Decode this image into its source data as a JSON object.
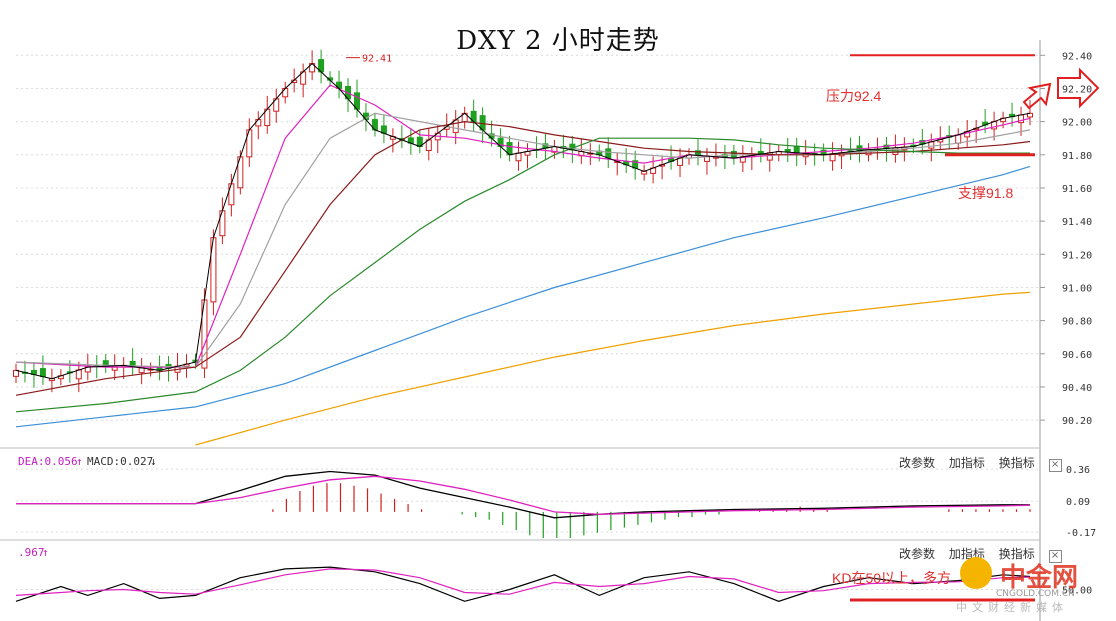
{
  "chart_data": [
    {
      "type": "candlestick",
      "title": "DXY 2 小时走势",
      "ylim": [
        90.05,
        92.45
      ],
      "y_ticks": [
        "92.40",
        "92.20",
        "92.00",
        "91.80",
        "91.60",
        "91.40",
        "91.20",
        "91.00",
        "90.80",
        "90.60",
        "90.40",
        "90.20"
      ],
      "peak_label": "92.41",
      "annotations": {
        "resistance": "压力92.4",
        "support": "支撑91.8"
      },
      "resistance_level": 92.4,
      "support_level": 91.8,
      "series": [
        {
          "name": "close",
          "color": "#000000",
          "points": [
            [
              0,
              90.5
            ],
            [
              4,
              90.45
            ],
            [
              8,
              90.52
            ],
            [
              12,
              90.53
            ],
            [
              16,
              90.5
            ],
            [
              20,
              90.55
            ],
            [
              22,
              91.3
            ],
            [
              26,
              91.95
            ],
            [
              30,
              92.2
            ],
            [
              33,
              92.35
            ],
            [
              36,
              92.2
            ],
            [
              40,
              91.95
            ],
            [
              45,
              91.85
            ],
            [
              50,
              92.05
            ],
            [
              55,
              91.8
            ],
            [
              60,
              91.85
            ],
            [
              65,
              91.8
            ],
            [
              70,
              91.7
            ],
            [
              75,
              91.8
            ],
            [
              80,
              91.78
            ],
            [
              85,
              91.82
            ],
            [
              90,
              91.8
            ],
            [
              95,
              91.83
            ],
            [
              100,
              91.85
            ],
            [
              105,
              91.92
            ],
            [
              110,
              92.02
            ],
            [
              113,
              92.05
            ]
          ]
        },
        {
          "name": "ma-pink",
          "color": "#e020c0",
          "points": [
            [
              0,
              90.55
            ],
            [
              10,
              90.52
            ],
            [
              20,
              90.52
            ],
            [
              25,
              91.2
            ],
            [
              30,
              91.9
            ],
            [
              35,
              92.22
            ],
            [
              40,
              92.1
            ],
            [
              45,
              91.92
            ],
            [
              50,
              91.9
            ],
            [
              55,
              91.85
            ],
            [
              60,
              91.82
            ],
            [
              65,
              91.78
            ],
            [
              70,
              91.75
            ],
            [
              75,
              91.8
            ],
            [
              80,
              91.78
            ],
            [
              85,
              91.8
            ],
            [
              90,
              91.82
            ],
            [
              95,
              91.84
            ],
            [
              100,
              91.87
            ],
            [
              105,
              91.92
            ],
            [
              110,
              91.98
            ],
            [
              113,
              92.02
            ]
          ]
        },
        {
          "name": "ma-gray",
          "color": "#a0a0a0",
          "points": [
            [
              0,
              90.55
            ],
            [
              10,
              90.53
            ],
            [
              20,
              90.52
            ],
            [
              25,
              90.9
            ],
            [
              30,
              91.5
            ],
            [
              35,
              91.9
            ],
            [
              40,
              92.05
            ],
            [
              45,
              92.0
            ],
            [
              50,
              91.95
            ],
            [
              55,
              91.9
            ],
            [
              60,
              91.85
            ],
            [
              65,
              91.82
            ],
            [
              70,
              91.8
            ],
            [
              75,
              91.78
            ],
            [
              80,
              91.8
            ],
            [
              85,
              91.8
            ],
            [
              90,
              91.8
            ],
            [
              95,
              91.82
            ],
            [
              100,
              91.84
            ],
            [
              105,
              91.87
            ],
            [
              110,
              91.92
            ],
            [
              113,
              91.95
            ]
          ]
        },
        {
          "name": "ma-brown",
          "color": "#8b1a1a",
          "points": [
            [
              0,
              90.35
            ],
            [
              10,
              90.45
            ],
            [
              20,
              90.52
            ],
            [
              25,
              90.7
            ],
            [
              30,
              91.1
            ],
            [
              35,
              91.5
            ],
            [
              40,
              91.8
            ],
            [
              45,
              91.95
            ],
            [
              50,
              92.0
            ],
            [
              55,
              91.97
            ],
            [
              60,
              91.92
            ],
            [
              65,
              91.88
            ],
            [
              70,
              91.84
            ],
            [
              75,
              91.82
            ],
            [
              80,
              91.81
            ],
            [
              85,
              91.8
            ],
            [
              90,
              91.8
            ],
            [
              95,
              91.81
            ],
            [
              100,
              91.82
            ],
            [
              105,
              91.84
            ],
            [
              110,
              91.86
            ],
            [
              113,
              91.88
            ]
          ]
        },
        {
          "name": "ma-green",
          "color": "#2a8a2a",
          "points": [
            [
              0,
              90.25
            ],
            [
              10,
              90.3
            ],
            [
              20,
              90.37
            ],
            [
              25,
              90.5
            ],
            [
              30,
              90.7
            ],
            [
              35,
              90.95
            ],
            [
              40,
              91.15
            ],
            [
              45,
              91.35
            ],
            [
              50,
              91.52
            ],
            [
              55,
              91.65
            ],
            [
              60,
              91.8
            ],
            [
              65,
              91.9
            ],
            [
              70,
              91.9
            ],
            [
              75,
              91.9
            ],
            [
              80,
              91.89
            ],
            [
              85,
              91.86
            ],
            [
              90,
              91.84
            ],
            [
              95,
              91.83
            ],
            [
              100,
              91.82
            ],
            [
              105,
              91.81
            ],
            [
              110,
              91.81
            ],
            [
              113,
              91.81
            ]
          ]
        },
        {
          "name": "ma-blue",
          "color": "#3b8fd8",
          "points": [
            [
              0,
              90.16
            ],
            [
              10,
              90.22
            ],
            [
              20,
              90.28
            ],
            [
              30,
              90.42
            ],
            [
              40,
              90.62
            ],
            [
              50,
              90.82
            ],
            [
              60,
              91.0
            ],
            [
              70,
              91.15
            ],
            [
              80,
              91.3
            ],
            [
              90,
              91.42
            ],
            [
              100,
              91.55
            ],
            [
              110,
              91.68
            ],
            [
              113,
              91.73
            ]
          ]
        },
        {
          "name": "ma-orange",
          "color": "#f0a000",
          "points": [
            [
              20,
              90.05
            ],
            [
              30,
              90.2
            ],
            [
              40,
              90.34
            ],
            [
              50,
              90.46
            ],
            [
              60,
              90.58
            ],
            [
              70,
              90.68
            ],
            [
              80,
              90.77
            ],
            [
              90,
              90.84
            ],
            [
              100,
              90.9
            ],
            [
              110,
              90.96
            ],
            [
              113,
              90.97
            ]
          ]
        }
      ]
    },
    {
      "type": "line",
      "indicator": "MACD",
      "label_dea": "DEA:0.056",
      "label_macd": "MACD:0.027",
      "y_ticks": [
        "0.36",
        "0.09",
        "-0.17"
      ],
      "ylim": [
        -0.22,
        0.42
      ],
      "series": [
        {
          "name": "DIF",
          "color": "#000000",
          "points": [
            [
              0,
              0.07
            ],
            [
              20,
              0.07
            ],
            [
              25,
              0.18
            ],
            [
              30,
              0.3
            ],
            [
              35,
              0.34
            ],
            [
              40,
              0.31
            ],
            [
              45,
              0.2
            ],
            [
              50,
              0.12
            ],
            [
              55,
              0.04
            ],
            [
              60,
              -0.05
            ],
            [
              65,
              -0.02
            ],
            [
              70,
              0.0
            ],
            [
              75,
              0.01
            ],
            [
              80,
              0.02
            ],
            [
              90,
              0.03
            ],
            [
              100,
              0.05
            ],
            [
              110,
              0.06
            ],
            [
              113,
              0.06
            ]
          ]
        },
        {
          "name": "DEA",
          "color": "#e020c0",
          "points": [
            [
              0,
              0.07
            ],
            [
              20,
              0.07
            ],
            [
              25,
              0.12
            ],
            [
              30,
              0.2
            ],
            [
              35,
              0.27
            ],
            [
              40,
              0.3
            ],
            [
              45,
              0.26
            ],
            [
              50,
              0.19
            ],
            [
              55,
              0.1
            ],
            [
              60,
              0.0
            ],
            [
              65,
              -0.02
            ],
            [
              70,
              -0.01
            ],
            [
              75,
              0.0
            ],
            [
              80,
              0.01
            ],
            [
              90,
              0.02
            ],
            [
              100,
              0.04
            ],
            [
              110,
              0.05
            ],
            [
              113,
              0.056
            ]
          ]
        }
      ],
      "histogram": [
        0,
        0,
        0,
        0,
        0,
        0,
        0,
        0,
        0,
        0,
        0,
        0,
        0,
        0,
        0,
        0,
        0,
        0,
        0,
        0.01,
        0.05,
        0.08,
        0.1,
        0.11,
        0.11,
        0.1,
        0.09,
        0.07,
        0.05,
        0.03,
        0.01,
        0,
        0,
        -0.01,
        -0.02,
        -0.03,
        -0.05,
        -0.07,
        -0.09,
        -0.1,
        -0.1,
        -0.1,
        -0.09,
        -0.08,
        -0.07,
        -0.06,
        -0.05,
        -0.04,
        -0.03,
        -0.02,
        -0.02,
        -0.01,
        -0.01,
        0,
        0,
        0.01,
        0.01,
        0.01,
        0.02,
        0.01,
        0.01,
        0,
        0,
        0,
        0,
        0,
        0,
        0,
        0,
        0.01,
        0.01,
        0.01,
        0.01,
        0.01,
        0.01,
        0.01
      ]
    },
    {
      "type": "line",
      "indicator": "KD",
      "label_k": ".967",
      "y_ticks": [
        "50.00"
      ],
      "ylim": [
        0,
        100
      ],
      "annotation": "KD在50以上，多方",
      "series": [
        {
          "name": "K",
          "color": "#000000",
          "points": [
            [
              0,
              30
            ],
            [
              5,
              55
            ],
            [
              8,
              40
            ],
            [
              12,
              60
            ],
            [
              16,
              35
            ],
            [
              20,
              40
            ],
            [
              25,
              70
            ],
            [
              30,
              85
            ],
            [
              35,
              88
            ],
            [
              40,
              80
            ],
            [
              45,
              60
            ],
            [
              50,
              30
            ],
            [
              55,
              50
            ],
            [
              60,
              75
            ],
            [
              65,
              40
            ],
            [
              70,
              70
            ],
            [
              75,
              80
            ],
            [
              80,
              60
            ],
            [
              85,
              30
            ],
            [
              90,
              55
            ],
            [
              95,
              70
            ],
            [
              100,
              60
            ],
            [
              105,
              65
            ],
            [
              110,
              75
            ],
            [
              113,
              72
            ]
          ]
        },
        {
          "name": "D",
          "color": "#e020c0",
          "points": [
            [
              0,
              40
            ],
            [
              5,
              45
            ],
            [
              8,
              48
            ],
            [
              12,
              50
            ],
            [
              16,
              45
            ],
            [
              20,
              42
            ],
            [
              25,
              58
            ],
            [
              30,
              75
            ],
            [
              35,
              85
            ],
            [
              40,
              83
            ],
            [
              45,
              70
            ],
            [
              50,
              45
            ],
            [
              55,
              42
            ],
            [
              60,
              62
            ],
            [
              65,
              55
            ],
            [
              70,
              60
            ],
            [
              75,
              72
            ],
            [
              80,
              68
            ],
            [
              85,
              45
            ],
            [
              90,
              48
            ],
            [
              95,
              60
            ],
            [
              100,
              62
            ],
            [
              105,
              63
            ],
            [
              110,
              70
            ],
            [
              113,
              71
            ]
          ]
        }
      ]
    }
  ],
  "toolbar": {
    "params": "改参数",
    "add": "加指标",
    "switch": "换指标",
    "close": "×"
  },
  "watermark": {
    "brand": "中金网",
    "url": "CNGOLD.COM.CN",
    "slogan": "中文财经新媒体"
  }
}
